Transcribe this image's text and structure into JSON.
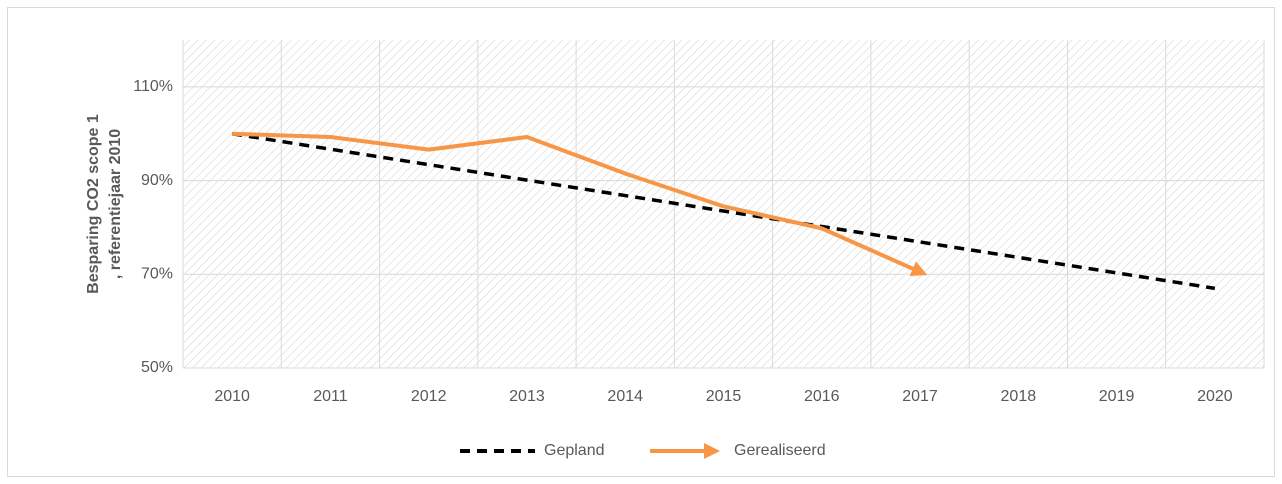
{
  "chart_data": {
    "type": "line",
    "ylabel": [
      "Besparing CO2 scope 1",
      ", referentiejaar 2010"
    ],
    "categories": [
      "2010",
      "2011",
      "2012",
      "2013",
      "2014",
      "2015",
      "2016",
      "2017",
      "2018",
      "2019",
      "2020"
    ],
    "series": [
      {
        "name": "Gepland",
        "color": "#000000",
        "line_style": "dashed",
        "end_marker": "none",
        "values": [
          100,
          96.7,
          93.4,
          90.1,
          86.8,
          83.5,
          80.2,
          76.9,
          73.6,
          70.3,
          67.0
        ]
      },
      {
        "name": "Gerealiseerd",
        "color": "#f79646",
        "line_style": "solid",
        "end_marker": "arrow",
        "values": [
          100,
          99.3,
          96.6,
          99.3,
          91.5,
          84.5,
          79.8,
          70.5,
          null,
          null,
          null
        ]
      }
    ],
    "ylim": [
      50,
      120
    ],
    "yticks": [
      {
        "value": 50,
        "label": "50%"
      },
      {
        "value": 70,
        "label": "70%"
      },
      {
        "value": 90,
        "label": "90%"
      },
      {
        "value": 110,
        "label": "110%"
      }
    ],
    "grid": true,
    "legend": "bottom"
  }
}
